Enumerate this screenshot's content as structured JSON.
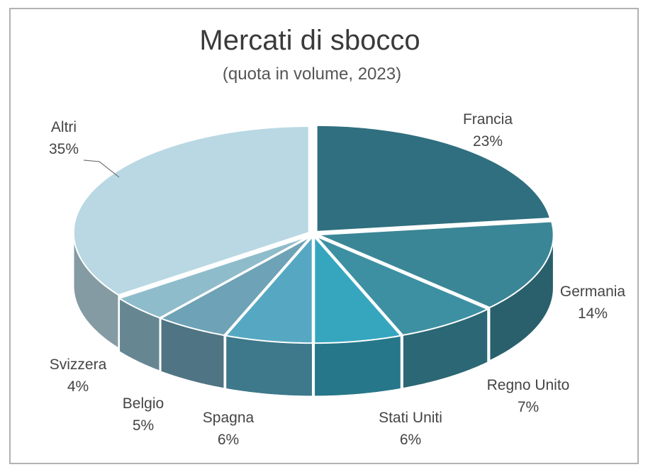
{
  "chart_data": {
    "type": "pie",
    "title": "Mercati di sbocco",
    "subtitle": "(quota in volume, 2023)",
    "categories": [
      "Francia",
      "Germania",
      "Regno Unito",
      "Stati Uniti",
      "Spagna",
      "Belgio",
      "Svizzera",
      "Altri"
    ],
    "values": [
      23,
      14,
      7,
      6,
      6,
      5,
      4,
      35
    ],
    "value_labels": [
      "23%",
      "14%",
      "7%",
      "6%",
      "6%",
      "5%",
      "4%",
      "35%"
    ],
    "colors": [
      "#2f6f7f",
      "#3a8696",
      "#3d90a2",
      "#36a6bf",
      "#56a8c2",
      "#6ea2b6",
      "#8fbccb",
      "#b9d8e3"
    ]
  }
}
